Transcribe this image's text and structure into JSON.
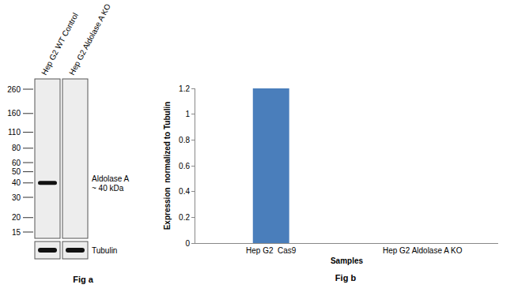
{
  "figure_a": {
    "caption": "Fig a",
    "lanes": [
      "Hep G2 WT Control",
      "Hep G2 Aldolase A KO"
    ],
    "markers_kda": [
      260,
      160,
      110,
      80,
      60,
      50,
      40,
      30,
      20,
      15
    ],
    "bands": [
      {
        "name": "Aldolase A",
        "label": "~ 40 kDa",
        "kda": 40,
        "present": [
          true,
          false
        ]
      }
    ],
    "loading_control": {
      "name": "Tubulin",
      "present": [
        true,
        true
      ]
    }
  },
  "chart_data": {
    "type": "bar",
    "caption": "Fig b",
    "categories": [
      "Hep G2  Cas9",
      "Hep G2 Aldolase A KO"
    ],
    "values": [
      1.2,
      0
    ],
    "color": "#4a7ebb",
    "xlabel": "Samples",
    "ylabel": "Expression  normalized to Tubulin",
    "ylim": [
      0,
      1.2
    ],
    "yticks": [
      0,
      0.2,
      0.4,
      0.6,
      0.8,
      1,
      1.2
    ],
    "grid": false
  }
}
